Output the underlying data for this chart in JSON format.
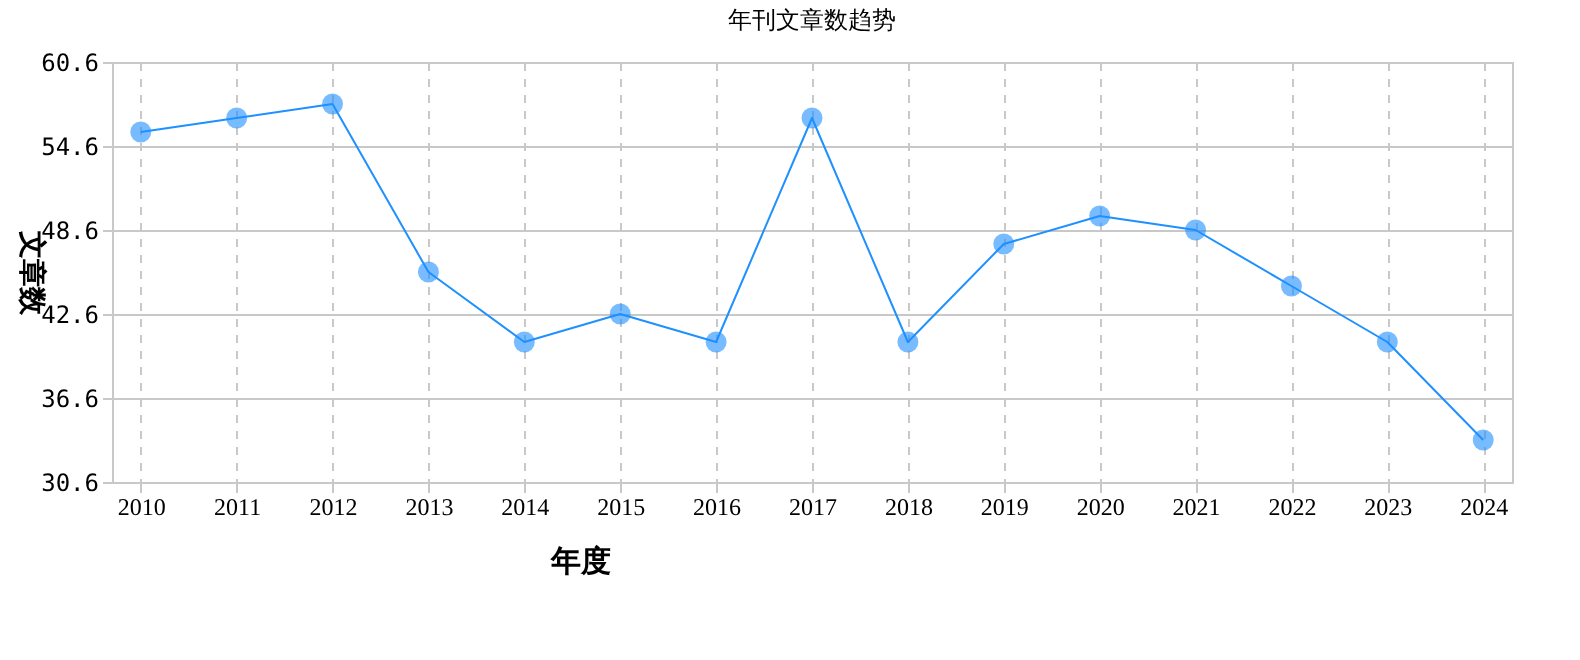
{
  "chart_data": {
    "type": "line",
    "title": "年刊文章数趋势",
    "xlabel": "年度",
    "ylabel": "文章数",
    "categories": [
      "2010",
      "2011",
      "2012",
      "2013",
      "2014",
      "2015",
      "2016",
      "2017",
      "2018",
      "2019",
      "2020",
      "2021",
      "2022",
      "2023",
      "2024"
    ],
    "series": [
      {
        "color": "#1e90ff",
        "values": [
          55.6,
          56.6,
          57.6,
          45.6,
          40.6,
          42.6,
          40.6,
          56.6,
          40.6,
          47.6,
          49.6,
          48.6,
          44.6,
          40.6,
          33.6
        ]
      }
    ],
    "ylim": [
      30.6,
      60.6
    ],
    "yticks": [
      30.6,
      36.6,
      42.6,
      48.6,
      54.6,
      60.6
    ],
    "grid": true,
    "marker": "circle"
  }
}
